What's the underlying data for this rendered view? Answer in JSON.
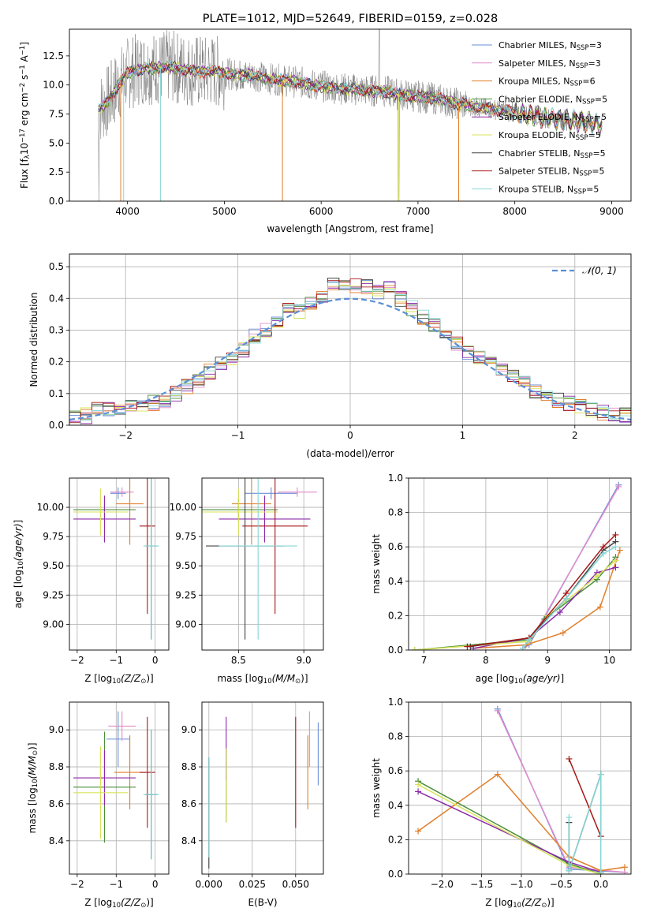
{
  "colors": {
    "chabrier_miles": "#6a8fd8",
    "salpeter_miles": "#e28ccb",
    "kroupa_miles": "#e07f2a",
    "chabrier_elodie": "#4d8f3a",
    "salpeter_elodie": "#8c2aa8",
    "kroupa_elodie": "#d8e35a",
    "chabrier_stelib": "#444444",
    "salpeter_stelib": "#a81717",
    "kroupa_stelib": "#86d6d6",
    "raw_spectrum": "#7a7a7a",
    "normal_curve": "#5b8fd6"
  },
  "chart_data": [
    {
      "id": "spectrum",
      "type": "line",
      "title": "PLATE=1012, MJD=52649, FIBERID=0159, z=0.028",
      "xlabel": "wavelength [Angstrom, rest frame]",
      "ylabel": "Flux [f",
      "ylabel_parts": [
        "Flux [f",
        "λ",
        "10",
        "−17",
        " erg cm",
        "−2",
        " s",
        "−1",
        " A",
        "−1",
        "]"
      ],
      "xlim": [
        3400,
        9200
      ],
      "ylim": [
        0,
        14.8
      ],
      "xticks": [
        "4000",
        "5000",
        "6000",
        "7000",
        "8000",
        "9000"
      ],
      "yticks": [
        "0.0",
        "2.5",
        "5.0",
        "7.5",
        "10.0",
        "12.5"
      ],
      "x": [
        3700,
        3800,
        3900,
        4000,
        4100,
        4200,
        4300,
        4400,
        4500,
        4600,
        4700,
        4800,
        4900,
        5000,
        5100,
        5200,
        5300,
        5400,
        5500,
        5600,
        5700,
        5800,
        5900,
        6000,
        6100,
        6200,
        6300,
        6400,
        6500,
        6600,
        6700,
        6800,
        6900,
        7000,
        7100,
        7200,
        7300,
        7400,
        7500,
        7600,
        7700,
        7800,
        7900,
        8000,
        8100,
        8200,
        8300,
        8400,
        8500,
        8600,
        8700,
        8800,
        8900
      ],
      "model_y": [
        7.9,
        8.6,
        9.9,
        11.0,
        11.3,
        11.5,
        11.4,
        11.6,
        11.5,
        11.3,
        11.2,
        11.1,
        11.2,
        11.0,
        10.9,
        10.8,
        10.9,
        10.6,
        10.5,
        10.4,
        10.3,
        10.2,
        10.0,
        9.9,
        9.8,
        9.7,
        9.6,
        9.6,
        9.5,
        9.5,
        9.4,
        9.2,
        9.1,
        9.0,
        8.9,
        8.8,
        8.6,
        8.4,
        8.3,
        8.1,
        8.0,
        7.9,
        7.8,
        7.6,
        7.5,
        7.4,
        7.2,
        7.1,
        7.0,
        6.9,
        6.8,
        6.7,
        6.6
      ],
      "series": [
        {
          "name": "Chabrier MILES, N",
          "suffix": "=3",
          "color_key": "chabrier_miles"
        },
        {
          "name": "Salpeter MILES, N",
          "suffix": "=3",
          "color_key": "salpeter_miles"
        },
        {
          "name": "Kroupa MILES, N",
          "suffix": "=6",
          "color_key": "kroupa_miles"
        },
        {
          "name": "Chabrier ELODIE, N",
          "suffix": "=5",
          "color_key": "chabrier_elodie"
        },
        {
          "name": "Salpeter ELODIE, N",
          "suffix": "=5",
          "color_key": "salpeter_elodie"
        },
        {
          "name": "Kroupa ELODIE, N",
          "suffix": "=5",
          "color_key": "kroupa_elodie"
        },
        {
          "name": "Chabrier STELIB, N",
          "suffix": "=5",
          "color_key": "chabrier_stelib"
        },
        {
          "name": "Salpeter STELIB, N",
          "suffix": "=5",
          "color_key": "salpeter_stelib"
        },
        {
          "name": "Kroupa STELIB, N",
          "suffix": "=5",
          "color_key": "kroupa_stelib"
        }
      ],
      "legend_sub": "SSP",
      "legend": "upper-right"
    },
    {
      "id": "residuals",
      "type": "line",
      "xlabel": "(data-model)/error",
      "ylabel": "Normed distribution",
      "xlim": [
        -2.5,
        2.5
      ],
      "ylim": [
        0,
        0.54
      ],
      "xticks": [
        "−2",
        "−1",
        "0",
        "1",
        "2"
      ],
      "yticks": [
        "0.0",
        "0.1",
        "0.2",
        "0.3",
        "0.4",
        "0.5"
      ],
      "grid": true,
      "legend": "upper-right",
      "legend_label": "𝒩(0, 1)",
      "bins": [
        -2.5,
        -2.4,
        -2.3,
        -2.2,
        -2.1,
        -2.0,
        -1.9,
        -1.8,
        -1.7,
        -1.6,
        -1.5,
        -1.4,
        -1.3,
        -1.2,
        -1.1,
        -1.0,
        -0.9,
        -0.8,
        -0.7,
        -0.6,
        -0.5,
        -0.4,
        -0.3,
        -0.2,
        -0.1,
        0.0,
        0.1,
        0.2,
        0.3,
        0.4,
        0.5,
        0.6,
        0.7,
        0.8,
        0.9,
        1.0,
        1.1,
        1.2,
        1.3,
        1.4,
        1.5,
        1.6,
        1.7,
        1.8,
        1.9,
        2.0,
        2.1,
        2.2,
        2.3,
        2.4
      ],
      "hist": [
        0.02,
        0.03,
        0.05,
        0.05,
        0.05,
        0.06,
        0.06,
        0.07,
        0.08,
        0.1,
        0.12,
        0.14,
        0.17,
        0.2,
        0.21,
        0.24,
        0.28,
        0.3,
        0.33,
        0.37,
        0.36,
        0.39,
        0.41,
        0.44,
        0.45,
        0.44,
        0.44,
        0.42,
        0.43,
        0.4,
        0.37,
        0.34,
        0.32,
        0.28,
        0.26,
        0.23,
        0.21,
        0.19,
        0.17,
        0.15,
        0.13,
        0.11,
        0.1,
        0.08,
        0.07,
        0.06,
        0.05,
        0.04,
        0.03,
        0.03
      ]
    },
    {
      "id": "age_vs_z",
      "type": "scatter",
      "xlabel": "Z [log",
      "ylabel": "age  [log",
      "xlim": [
        -2.2,
        0.35
      ],
      "ylim": [
        8.78,
        10.25
      ],
      "xticks": [
        "−2",
        "−1",
        "0"
      ],
      "yticks": [
        "9.00",
        "9.25",
        "9.50",
        "9.75",
        "10.00"
      ],
      "grid": true,
      "points": [
        {
          "x": -0.95,
          "y": 10.12,
          "xerr": 0.2,
          "yerr": 0.05,
          "color_key": "chabrier_miles"
        },
        {
          "x": -0.85,
          "y": 10.13,
          "xerr": 0.3,
          "yerr": 0.04,
          "color_key": "salpeter_miles"
        },
        {
          "x": -0.65,
          "y": 10.03,
          "xerr": 0.35,
          "yerr": 0.35,
          "color_key": "kroupa_miles"
        },
        {
          "x": -1.3,
          "y": 9.98,
          "xerr": 0.8,
          "yerr": 0.1,
          "color_key": "chabrier_elodie"
        },
        {
          "x": -1.3,
          "y": 9.9,
          "xerr": 0.8,
          "yerr": 0.2,
          "color_key": "salpeter_elodie"
        },
        {
          "x": -1.4,
          "y": 9.96,
          "xerr": 0.7,
          "yerr": 0.2,
          "color_key": "kroupa_elodie"
        },
        {
          "x": -0.1,
          "y": 9.67,
          "xerr": 0.15,
          "yerr": 0.8,
          "color_key": "chabrier_stelib"
        },
        {
          "x": -0.2,
          "y": 9.84,
          "xerr": 0.2,
          "yerr": 0.75,
          "color_key": "salpeter_stelib"
        },
        {
          "x": -0.1,
          "y": 9.67,
          "xerr": 0.2,
          "yerr": 0.8,
          "color_key": "kroupa_stelib"
        }
      ]
    },
    {
      "id": "age_vs_mass",
      "type": "scatter",
      "xlabel": "mass [log",
      "ylabel": "",
      "xlim": [
        8.22,
        9.15
      ],
      "ylim": [
        8.78,
        10.25
      ],
      "xticks": [
        "8.5",
        "9.0"
      ],
      "yticks": [
        "9.00",
        "9.25",
        "9.50",
        "9.75",
        "10.00"
      ],
      "grid": true,
      "points": [
        {
          "x": 8.75,
          "y": 10.12,
          "xerr": 0.2,
          "yerr": 0.05,
          "color_key": "chabrier_miles"
        },
        {
          "x": 8.95,
          "y": 10.13,
          "xerr": 0.15,
          "yerr": 0.04,
          "color_key": "salpeter_miles"
        },
        {
          "x": 8.6,
          "y": 10.03,
          "xerr": 0.15,
          "yerr": 0.35,
          "color_key": "kroupa_miles"
        },
        {
          "x": 8.5,
          "y": 9.98,
          "xerr": 0.3,
          "yerr": 0.1,
          "color_key": "chabrier_elodie"
        },
        {
          "x": 8.7,
          "y": 9.9,
          "xerr": 0.35,
          "yerr": 0.2,
          "color_key": "salpeter_elodie"
        },
        {
          "x": 8.5,
          "y": 9.96,
          "xerr": 0.3,
          "yerr": 0.2,
          "color_key": "kroupa_elodie"
        },
        {
          "x": 8.55,
          "y": 9.67,
          "xerr": 0.3,
          "yerr": 0.8,
          "color_key": "chabrier_stelib"
        },
        {
          "x": 8.78,
          "y": 9.84,
          "xerr": 0.25,
          "yerr": 0.75,
          "color_key": "salpeter_stelib"
        },
        {
          "x": 8.65,
          "y": 9.67,
          "xerr": 0.3,
          "yerr": 0.8,
          "color_key": "kroupa_stelib"
        }
      ]
    },
    {
      "id": "weight_vs_age",
      "type": "line",
      "xlabel": "age  [log",
      "ylabel": "mass weight",
      "xlim": [
        6.75,
        10.35
      ],
      "ylim": [
        0,
        1.0
      ],
      "xticks": [
        "7",
        "8",
        "9",
        "10"
      ],
      "yticks": [
        "0.0",
        "0.2",
        "0.4",
        "0.6",
        "0.8",
        "1.0"
      ],
      "grid": true,
      "series": [
        {
          "color_key": "chabrier_miles",
          "x": [
            8.6,
            8.7,
            10.15
          ],
          "y": [
            0.01,
            0.03,
            0.96
          ]
        },
        {
          "color_key": "salpeter_miles",
          "x": [
            8.6,
            8.7,
            10.15
          ],
          "y": [
            0.01,
            0.04,
            0.95
          ]
        },
        {
          "color_key": "kroupa_miles",
          "x": [
            7.8,
            8.65,
            9.25,
            9.85,
            10.17
          ],
          "y": [
            0.01,
            0.03,
            0.1,
            0.25,
            0.58
          ]
        },
        {
          "color_key": "chabrier_elodie",
          "x": [
            6.85,
            8.7,
            8.95,
            9.8,
            10.1
          ],
          "y": [
            0.0,
            0.06,
            0.18,
            0.41,
            0.54
          ]
        },
        {
          "color_key": "salpeter_elodie",
          "x": [
            7.8,
            8.7,
            9.2,
            9.8,
            10.1
          ],
          "y": [
            0.01,
            0.07,
            0.22,
            0.45,
            0.48
          ]
        },
        {
          "color_key": "kroupa_elodie",
          "x": [
            6.85,
            8.7,
            9.0,
            9.8,
            10.1
          ],
          "y": [
            0.0,
            0.05,
            0.2,
            0.43,
            0.52
          ]
        },
        {
          "color_key": "chabrier_stelib",
          "x": [
            7.75,
            8.7,
            9.3,
            9.9,
            10.1
          ],
          "y": [
            0.02,
            0.07,
            0.3,
            0.58,
            0.63
          ]
        },
        {
          "color_key": "salpeter_stelib",
          "x": [
            7.7,
            8.7,
            9.3,
            9.9,
            10.1
          ],
          "y": [
            0.02,
            0.07,
            0.33,
            0.6,
            0.67
          ]
        },
        {
          "color_key": "kroupa_stelib",
          "x": [
            8.6,
            8.7,
            9.3,
            9.9,
            10.1
          ],
          "y": [
            0.01,
            0.06,
            0.3,
            0.56,
            0.6
          ]
        }
      ]
    },
    {
      "id": "mass_vs_z",
      "type": "scatter",
      "xlabel": "Z [log",
      "ylabel": "mass [log",
      "xlim": [
        -2.2,
        0.35
      ],
      "ylim": [
        8.22,
        9.15
      ],
      "xticks": [
        "−2",
        "−1",
        "0"
      ],
      "yticks": [
        "8.4",
        "8.6",
        "8.8",
        "9.0"
      ],
      "grid": true,
      "points": [
        {
          "x": -0.95,
          "y": 8.95,
          "xerr": 0.3,
          "yerr": 0.15,
          "color_key": "chabrier_miles"
        },
        {
          "x": -0.85,
          "y": 9.02,
          "xerr": 0.35,
          "yerr": 0.08,
          "color_key": "salpeter_miles"
        },
        {
          "x": -0.65,
          "y": 8.77,
          "xerr": 0.4,
          "yerr": 0.2,
          "color_key": "kroupa_miles"
        },
        {
          "x": -1.3,
          "y": 8.69,
          "xerr": 0.8,
          "yerr": 0.3,
          "color_key": "chabrier_elodie"
        },
        {
          "x": -1.3,
          "y": 8.74,
          "xerr": 0.8,
          "yerr": 0.15,
          "color_key": "salpeter_elodie"
        },
        {
          "x": -1.4,
          "y": 8.66,
          "xerr": 0.7,
          "yerr": 0.25,
          "color_key": "kroupa_elodie"
        },
        {
          "x": -0.1,
          "y": 8.65,
          "xerr": 0.15,
          "yerr": 0.35,
          "color_key": "chabrier_stelib"
        },
        {
          "x": -0.2,
          "y": 8.77,
          "xerr": 0.2,
          "yerr": 0.3,
          "color_key": "salpeter_stelib"
        },
        {
          "x": -0.1,
          "y": 8.65,
          "xerr": 0.2,
          "yerr": 0.35,
          "color_key": "kroupa_stelib"
        }
      ]
    },
    {
      "id": "mass_vs_ebv",
      "type": "scatter",
      "xlabel": "E(B-V)",
      "ylabel": "",
      "xlim": [
        -0.004,
        0.066
      ],
      "ylim": [
        8.22,
        9.15
      ],
      "xticks": [
        "0.000",
        "0.025",
        "0.050"
      ],
      "yticks": [
        "8.4",
        "8.6",
        "8.8",
        "9.0"
      ],
      "grid": true,
      "points": [
        {
          "x": 0.063,
          "y": 8.87,
          "yerr": 0.17,
          "color_key": "chabrier_miles"
        },
        {
          "x": 0.058,
          "y": 8.95,
          "yerr": 0.15,
          "color_key": "salpeter_miles"
        },
        {
          "x": 0.057,
          "y": 8.77,
          "yerr": 0.2,
          "color_key": "kroupa_miles"
        },
        {
          "x": 0.01,
          "y": 8.7,
          "yerr": 0.2,
          "color_key": "chabrier_elodie"
        },
        {
          "x": 0.01,
          "y": 8.9,
          "yerr": 0.17,
          "color_key": "salpeter_elodie"
        },
        {
          "x": 0.01,
          "y": 8.7,
          "yerr": 0.2,
          "color_key": "kroupa_elodie"
        },
        {
          "x": 0.0,
          "y": 8.55,
          "yerr": 0.3,
          "color_key": "chabrier_stelib"
        },
        {
          "x": 0.05,
          "y": 8.77,
          "yerr": 0.3,
          "color_key": "salpeter_stelib"
        },
        {
          "x": 0.0,
          "y": 8.58,
          "yerr": 0.27,
          "color_key": "kroupa_stelib"
        }
      ]
    },
    {
      "id": "weight_vs_z",
      "type": "line",
      "xlabel": "Z [log",
      "ylabel": "mass weight",
      "xlim": [
        -2.42,
        0.38
      ],
      "ylim": [
        0,
        1.0
      ],
      "xticks": [
        "−2.0",
        "−1.5",
        "−1.0",
        "−0.5",
        "0.0"
      ],
      "yticks": [
        "0.0",
        "0.2",
        "0.4",
        "0.6",
        "0.8",
        "1.0"
      ],
      "grid": true,
      "series": [
        {
          "color_key": "chabrier_miles",
          "x": [
            -1.3,
            -0.4,
            0.3
          ],
          "y": [
            0.96,
            0.03,
            0.01
          ]
        },
        {
          "color_key": "salpeter_miles",
          "x": [
            -1.3,
            -0.4,
            0.3
          ],
          "y": [
            0.95,
            0.04,
            0.01
          ]
        },
        {
          "color_key": "kroupa_miles",
          "x": [
            -2.3,
            -1.3,
            -0.4,
            0.0,
            0.3
          ],
          "y": [
            0.25,
            0.58,
            0.1,
            0.02,
            0.04
          ]
        },
        {
          "color_key": "chabrier_elodie",
          "x": [
            -2.3,
            -0.4,
            0.0
          ],
          "y": [
            0.54,
            0.06,
            0.0
          ]
        },
        {
          "color_key": "salpeter_elodie",
          "x": [
            -2.3,
            -0.4,
            0.0
          ],
          "y": [
            0.48,
            0.07,
            0.01
          ]
        },
        {
          "color_key": "kroupa_elodie",
          "x": [
            -2.3,
            -0.4,
            0.0
          ],
          "y": [
            0.52,
            0.05,
            0.0
          ]
        },
        {
          "color_key": "chabrier_stelib",
          "x": [
            -0.4,
            -0.4,
            0.0,
            0.0
          ],
          "y": [
            0.3,
            0.02,
            0.58,
            0.22
          ]
        },
        {
          "color_key": "salpeter_stelib",
          "x": [
            -0.4,
            0.0
          ],
          "y": [
            0.67,
            0.22
          ]
        },
        {
          "color_key": "kroupa_stelib",
          "x": [
            -0.4,
            -0.4,
            0.0,
            0.0
          ],
          "y": [
            0.33,
            0.02,
            0.58,
            0.01
          ]
        }
      ]
    }
  ],
  "math": {
    "z_sub": "10",
    "z_frac": "(Z/Z",
    "z_sun": "⊙",
    "z_close": ")]",
    "mass_frac": "(M/M",
    "age_frac": "(age/yr)",
    "close_paren": ")]"
  }
}
